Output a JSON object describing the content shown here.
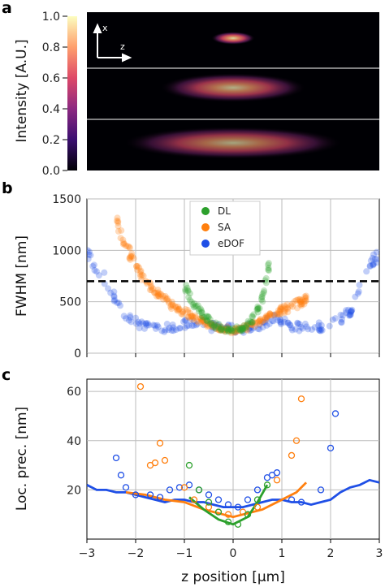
{
  "chart_data": [
    {
      "panel": "a",
      "type": "heatmap",
      "ylabel": "Intensity [A.U.]",
      "colorbar_ticks": [
        "1.0",
        "0.8",
        "0.6",
        "0.4",
        "0.2",
        "0.0"
      ],
      "axis_indicator": {
        "x": "x",
        "z": "z"
      },
      "colormap": [
        "#000004",
        "#3b0f70",
        "#8c2981",
        "#de4968",
        "#fe9f6d",
        "#fcfdbf"
      ],
      "beams": [
        {
          "name_hidden": true,
          "peak": 0.85,
          "extent_um": 0.6
        },
        {
          "name_hidden": true,
          "peak": 0.7,
          "extent_um": 2.0
        },
        {
          "name_hidden": true,
          "peak": 0.65,
          "extent_um": 3.0
        }
      ]
    },
    {
      "panel": "b",
      "type": "scatter",
      "ylabel": "FWHM [nm]",
      "xlim": [
        -3,
        3
      ],
      "ylim": [
        0,
        1500
      ],
      "yticks": [
        0,
        500,
        1000,
        1500
      ],
      "threshold": 700,
      "legend": [
        "DL",
        "SA",
        "eDOF"
      ],
      "colors": {
        "DL": "#2ca02c",
        "SA": "#ff7f0e",
        "eDOF": "#1f4fe6"
      },
      "series": [
        {
          "name": "DL",
          "x": [
            -1.0,
            -0.8,
            -0.6,
            -0.4,
            -0.2,
            0.0,
            0.2,
            0.4,
            0.6,
            0.75
          ],
          "y": [
            650,
            480,
            360,
            280,
            240,
            230,
            250,
            330,
            520,
            900
          ]
        },
        {
          "name": "SA",
          "x": [
            -2.4,
            -2.2,
            -2.0,
            -1.8,
            -1.6,
            -1.4,
            -1.2,
            -1.0,
            -0.8,
            -0.6,
            -0.4,
            -0.2,
            0.0,
            0.2,
            0.4,
            0.6,
            0.8,
            1.0,
            1.2,
            1.4,
            1.5
          ],
          "y": [
            1300,
            1050,
            850,
            700,
            600,
            520,
            450,
            400,
            350,
            300,
            270,
            240,
            220,
            240,
            270,
            320,
            380,
            420,
            450,
            500,
            520
          ]
        },
        {
          "name": "eDOF",
          "x": [
            -3.0,
            -2.6,
            -2.2,
            -1.8,
            -1.4,
            -1.0,
            -0.6,
            -0.2,
            0.2,
            0.6,
            0.9,
            1.2,
            1.6,
            2.0,
            2.4,
            2.8,
            3.0
          ],
          "y": [
            950,
            700,
            350,
            250,
            240,
            290,
            270,
            240,
            230,
            280,
            340,
            260,
            250,
            270,
            400,
            850,
            1000
          ]
        }
      ]
    },
    {
      "panel": "c",
      "type": "line",
      "ylabel": "Loc. prec. [nm]",
      "xlabel": "z position [µm]",
      "xlim": [
        -3,
        3
      ],
      "ylim": [
        0,
        65
      ],
      "xticks": [
        -3,
        -2,
        -1,
        0,
        1,
        2,
        3
      ],
      "yticks": [
        20,
        40,
        60
      ],
      "series": [
        {
          "name": "eDOF",
          "x": [
            -3.0,
            -2.8,
            -2.6,
            -2.4,
            -2.2,
            -2.0,
            -1.8,
            -1.6,
            -1.4,
            -1.2,
            -1.0,
            -0.8,
            -0.6,
            -0.4,
            -0.2,
            0.0,
            0.2,
            0.4,
            0.6,
            0.8,
            1.0,
            1.2,
            1.4,
            1.6,
            1.8,
            2.0,
            2.2,
            2.4,
            2.6,
            2.8,
            3.0
          ],
          "y": [
            22,
            20,
            20,
            19,
            19,
            18,
            17,
            16,
            15,
            16,
            16,
            15,
            15,
            14,
            13,
            13,
            13,
            14,
            15,
            16,
            16,
            15,
            15,
            14,
            15,
            16,
            19,
            21,
            22,
            24,
            23
          ]
        },
        {
          "name": "SA",
          "x": [
            -2.2,
            -1.8,
            -1.4,
            -1.0,
            -0.6,
            -0.2,
            0.0,
            0.2,
            0.6,
            1.0,
            1.3,
            1.5
          ],
          "y": [
            19,
            18,
            16,
            15,
            12,
            10,
            9,
            10,
            12,
            16,
            19,
            23
          ]
        },
        {
          "name": "DL",
          "x": [
            -0.9,
            -0.6,
            -0.3,
            0.0,
            0.3,
            0.5,
            0.7
          ],
          "y": [
            17,
            12,
            8,
            6,
            9,
            15,
            22
          ]
        }
      ],
      "points": [
        {
          "name": "eDOF",
          "x": [
            -2.4,
            -2.3,
            -2.2,
            -2.0,
            -1.7,
            -1.5,
            -1.3,
            -1.1,
            -0.9,
            -0.7,
            -0.5,
            -0.3,
            -0.1,
            0.1,
            0.3,
            0.5,
            0.7,
            0.8,
            0.9,
            1.2,
            1.4,
            1.8,
            2.0,
            2.1
          ],
          "y": [
            33,
            26,
            21,
            18,
            18,
            17,
            20,
            21,
            22,
            20,
            18,
            16,
            14,
            13,
            16,
            20,
            25,
            26,
            27,
            16,
            15,
            20,
            37,
            51
          ]
        },
        {
          "name": "SA",
          "x": [
            -1.9,
            -1.7,
            -1.6,
            -1.5,
            -1.4,
            -1.0,
            -0.8,
            -0.5,
            -0.3,
            -0.1,
            0.2,
            0.5,
            0.9,
            1.2,
            1.3,
            1.4
          ],
          "y": [
            62,
            30,
            31,
            39,
            32,
            21,
            16,
            13,
            11,
            10,
            11,
            13,
            24,
            34,
            40,
            57
          ]
        },
        {
          "name": "DL",
          "x": [
            -0.9,
            -0.7,
            -0.5,
            -0.3,
            -0.1,
            0.1,
            0.3,
            0.5,
            0.7
          ],
          "y": [
            30,
            20,
            15,
            11,
            7,
            6,
            10,
            16,
            22
          ]
        }
      ]
    }
  ],
  "panel_labels": [
    "a",
    "b",
    "c"
  ]
}
